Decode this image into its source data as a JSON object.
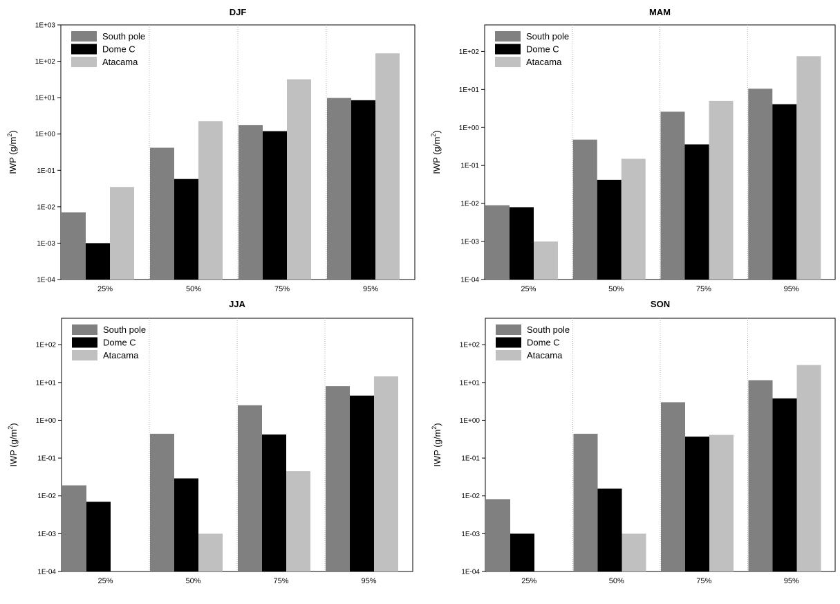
{
  "colors": {
    "south_pole": "#808080",
    "dome_c": "#000000",
    "atacama": "#c0c0c0",
    "axis": "#000000",
    "separator": "#b0b0b0"
  },
  "chart_data": [
    {
      "type": "bar",
      "title": "DJF",
      "categories": [
        "25%",
        "50%",
        "75%",
        "95%"
      ],
      "ylabel": "IWP  (g/m2)",
      "yscale": "log",
      "ylim": [
        0.0001,
        1000
      ],
      "yticks": [
        "1E-04",
        "1E-03",
        "1E-02",
        "1E-01",
        "1E+00",
        "1E+01",
        "1E+02",
        "1E+03"
      ],
      "legend": [
        "South pole",
        "Dome C",
        "Atacama"
      ],
      "series": [
        {
          "name": "South pole",
          "values": [
            0.007,
            0.42,
            1.75,
            9.8
          ]
        },
        {
          "name": "Dome C",
          "values": [
            0.001,
            0.058,
            1.2,
            8.5
          ]
        },
        {
          "name": "Atacama",
          "values": [
            0.035,
            2.25,
            32,
            165
          ]
        }
      ]
    },
    {
      "type": "bar",
      "title": "MAM",
      "categories": [
        "25%",
        "50%",
        "75%",
        "95%"
      ],
      "ylabel": "IWP  (g/m2)",
      "yscale": "log",
      "ylim": [
        0.0001,
        500
      ],
      "yticks": [
        "1E-04",
        "1E-03",
        "1E-02",
        "1E-01",
        "1E+00",
        "1E+01",
        "1E+02"
      ],
      "legend": [
        "South pole",
        "Dome C",
        "Atacama"
      ],
      "series": [
        {
          "name": "South pole",
          "values": [
            0.009,
            0.48,
            2.6,
            10.5
          ]
        },
        {
          "name": "Dome C",
          "values": [
            0.008,
            0.042,
            0.36,
            4.1
          ]
        },
        {
          "name": "Atacama",
          "values": [
            0.001,
            0.15,
            5.0,
            75
          ]
        }
      ]
    },
    {
      "type": "bar",
      "title": "JJA",
      "categories": [
        "25%",
        "50%",
        "75%",
        "95%"
      ],
      "ylabel": "IWP  (g/m2)",
      "yscale": "log",
      "ylim": [
        0.0001,
        500
      ],
      "yticks": [
        "1E-04",
        "1E-03",
        "1E-02",
        "1E-01",
        "1E+00",
        "1E+01",
        "1E+02"
      ],
      "legend": [
        "South pole",
        "Dome C",
        "Atacama"
      ],
      "series": [
        {
          "name": "South pole",
          "values": [
            0.019,
            0.44,
            2.5,
            8.0
          ]
        },
        {
          "name": "Dome C",
          "values": [
            0.007,
            0.029,
            0.42,
            4.5
          ]
        },
        {
          "name": "Atacama",
          "values": [
            0.0001,
            0.001,
            0.045,
            14.5
          ]
        }
      ]
    },
    {
      "type": "bar",
      "title": "SON",
      "categories": [
        "25%",
        "50%",
        "75%",
        "95%"
      ],
      "ylabel": "IWP  (g/m2)",
      "yscale": "log",
      "ylim": [
        0.0001,
        500
      ],
      "yticks": [
        "1E-04",
        "1E-03",
        "1E-02",
        "1E-01",
        "1E+00",
        "1E+01",
        "1E+02"
      ],
      "legend": [
        "South pole",
        "Dome C",
        "Atacama"
      ],
      "series": [
        {
          "name": "South pole",
          "values": [
            0.0082,
            0.44,
            3.0,
            11.5
          ]
        },
        {
          "name": "Dome C",
          "values": [
            0.001,
            0.0155,
            0.37,
            3.8
          ]
        },
        {
          "name": "Atacama",
          "values": [
            0.0001,
            0.001,
            0.41,
            29
          ]
        }
      ]
    }
  ]
}
